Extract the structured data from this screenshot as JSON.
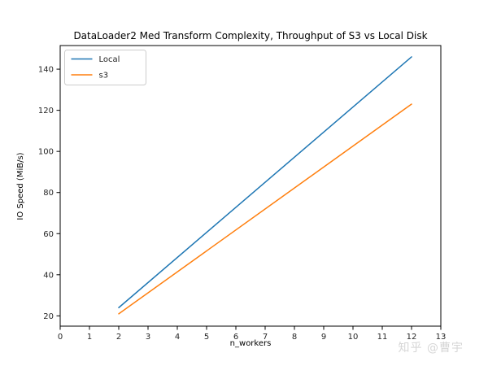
{
  "figure": {
    "title": "DataLoader2 Med Transform Complexity, Throughput of S3 vs Local Disk",
    "watermark": "知乎 @曹宇"
  },
  "chart_data": {
    "type": "line",
    "title": "DataLoader2 Med Transform Complexity, Throughput of S3 vs Local Disk",
    "xlabel": "n_workers",
    "ylabel": "IO Speed (MiB/s)",
    "xlim": [
      0,
      13
    ],
    "ylim": [
      15,
      151.5
    ],
    "x_ticks": [
      0,
      1,
      2,
      3,
      4,
      5,
      6,
      7,
      8,
      9,
      10,
      11,
      12,
      13
    ],
    "y_ticks": [
      20,
      40,
      60,
      80,
      100,
      120,
      140
    ],
    "grid": false,
    "legend_position": "upper left",
    "series": [
      {
        "name": "Local",
        "color": "#1f77b4",
        "x": [
          2,
          12
        ],
        "values": [
          24,
          146
        ]
      },
      {
        "name": "s3",
        "color": "#ff7f0e",
        "x": [
          2,
          12
        ],
        "values": [
          21,
          123
        ]
      }
    ],
    "colors": {
      "spine": "#000000",
      "tick_label": "#262626",
      "legend_border": "#cccccc",
      "watermark": "#d6d6d6"
    }
  }
}
